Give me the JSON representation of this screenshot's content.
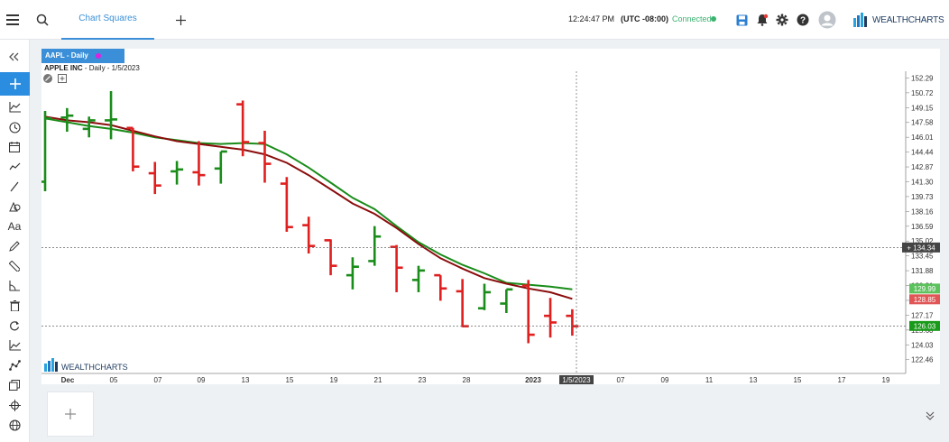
{
  "topbar": {
    "tab_label": "Chart Squares",
    "clock": "12:24:47 PM",
    "timezone": "(UTC -08:00)",
    "connection": "Connected",
    "brand_name": "WEALTHCHARTS",
    "icons": [
      "menu-icon",
      "search-icon",
      "add-tab-icon",
      "save-icon",
      "alert-bell-icon",
      "gear-icon",
      "help-icon",
      "user-avatar-icon"
    ]
  },
  "sidebar": {
    "icons": [
      "collapse-icon",
      "add-icon",
      "indicators-icon",
      "clock-icon",
      "calendar-icon",
      "trend-icon",
      "line-icon",
      "shapes-icon",
      "text-icon",
      "pencil-icon",
      "ruler-icon",
      "angle-icon",
      "trash-icon",
      "refresh-icon",
      "chart-icon",
      "nodes-icon",
      "layers-icon",
      "crosshair-icon",
      "globe-icon"
    ],
    "text_tool_label": "Aa"
  },
  "panel": {
    "symbol_tab": "AAPL - Daily",
    "legend_name": "APPLE INC",
    "legend_detail": " - Daily - 1/5/2023",
    "watermark": "WEALTHCHARTS"
  },
  "chart_data": {
    "type": "ohlc-bar",
    "ylim": [
      121.0,
      153.0
    ],
    "y_ticks": [
      "152.29",
      "150.72",
      "149.15",
      "147.58",
      "146.01",
      "144.44",
      "142.87",
      "141.30",
      "139.73",
      "138.16",
      "136.59",
      "135.02",
      "133.45",
      "131.88",
      "130.31",
      "128.74",
      "127.17",
      "125.60",
      "124.03",
      "122.46"
    ],
    "x_ticks": [
      "Dec",
      "05",
      "07",
      "09",
      "13",
      "15",
      "19",
      "21",
      "23",
      "28",
      "2023",
      "07",
      "09",
      "11",
      "13",
      "15",
      "17",
      "19"
    ],
    "crosshair_x_label": "1/5/2023",
    "crosshair_price_label": "134.34",
    "price_labels": [
      {
        "value": "129.99",
        "color": "#5cc25c"
      },
      {
        "value": "128.85",
        "color": "#e05555"
      },
      {
        "value": "126.03",
        "color": "#1a9a1a"
      }
    ],
    "bars": [
      {
        "date": "11/30",
        "o": 141.3,
        "h": 148.8,
        "l": 140.3,
        "c": 148.0
      },
      {
        "date": "12/01",
        "o": 148.1,
        "h": 149.1,
        "l": 146.6,
        "c": 148.3
      },
      {
        "date": "12/02",
        "o": 146.9,
        "h": 148.2,
        "l": 146.0,
        "c": 147.8
      },
      {
        "date": "12/05",
        "o": 147.8,
        "h": 150.9,
        "l": 145.8,
        "c": 147.9
      },
      {
        "date": "12/06",
        "o": 147.0,
        "h": 147.0,
        "l": 142.4,
        "c": 142.9
      },
      {
        "date": "12/07",
        "o": 142.2,
        "h": 143.4,
        "l": 140.0,
        "c": 140.9
      },
      {
        "date": "12/08",
        "o": 142.4,
        "h": 143.5,
        "l": 141.0,
        "c": 142.6
      },
      {
        "date": "12/09",
        "o": 142.3,
        "h": 145.6,
        "l": 140.9,
        "c": 142.0
      },
      {
        "date": "12/12",
        "o": 142.7,
        "h": 144.5,
        "l": 141.1,
        "c": 144.5
      },
      {
        "date": "12/13",
        "o": 149.5,
        "h": 149.9,
        "l": 144.0,
        "c": 145.5
      },
      {
        "date": "12/14",
        "o": 145.4,
        "h": 146.7,
        "l": 141.2,
        "c": 143.2
      },
      {
        "date": "12/15",
        "o": 141.1,
        "h": 141.8,
        "l": 136.0,
        "c": 136.5
      },
      {
        "date": "12/16",
        "o": 136.7,
        "h": 137.6,
        "l": 133.7,
        "c": 134.5
      },
      {
        "date": "12/19",
        "o": 135.1,
        "h": 135.2,
        "l": 131.4,
        "c": 132.4
      },
      {
        "date": "12/20",
        "o": 131.4,
        "h": 133.3,
        "l": 129.9,
        "c": 132.3
      },
      {
        "date": "12/21",
        "o": 132.9,
        "h": 136.6,
        "l": 132.4,
        "c": 135.5
      },
      {
        "date": "12/22",
        "o": 134.4,
        "h": 134.6,
        "l": 129.6,
        "c": 132.2
      },
      {
        "date": "12/23",
        "o": 130.9,
        "h": 132.4,
        "l": 129.6,
        "c": 131.9
      },
      {
        "date": "12/27",
        "o": 131.4,
        "h": 131.4,
        "l": 128.7,
        "c": 130.0
      },
      {
        "date": "12/28",
        "o": 129.7,
        "h": 131.0,
        "l": 125.9,
        "c": 126.0
      },
      {
        "date": "12/29",
        "o": 127.9,
        "h": 130.5,
        "l": 127.7,
        "c": 129.6
      },
      {
        "date": "12/30",
        "o": 128.4,
        "h": 129.9,
        "l": 127.4,
        "c": 129.9
      },
      {
        "date": "01/03",
        "o": 130.3,
        "h": 130.9,
        "l": 124.2,
        "c": 125.1
      },
      {
        "date": "01/04",
        "o": 127.1,
        "h": 129.0,
        "l": 124.8,
        "c": 126.4
      },
      {
        "date": "01/05",
        "o": 127.1,
        "h": 127.8,
        "l": 125.0,
        "c": 126.0
      }
    ],
    "ma_fast": [
      148.0,
      147.6,
      147.2,
      146.9,
      146.5,
      146.0,
      145.7,
      145.4,
      145.3,
      145.4,
      145.3,
      144.2,
      142.8,
      141.2,
      139.6,
      138.4,
      136.6,
      134.9,
      133.6,
      132.5,
      131.6,
      130.6,
      130.4,
      130.2,
      129.9
    ],
    "ma_slow": [
      148.2,
      147.8,
      147.6,
      147.3,
      146.7,
      146.1,
      145.6,
      145.3,
      145.0,
      144.7,
      144.2,
      143.3,
      142.0,
      140.5,
      139.0,
      137.9,
      136.4,
      134.7,
      133.2,
      132.1,
      131.1,
      130.5,
      130.0,
      129.6,
      128.9
    ]
  }
}
